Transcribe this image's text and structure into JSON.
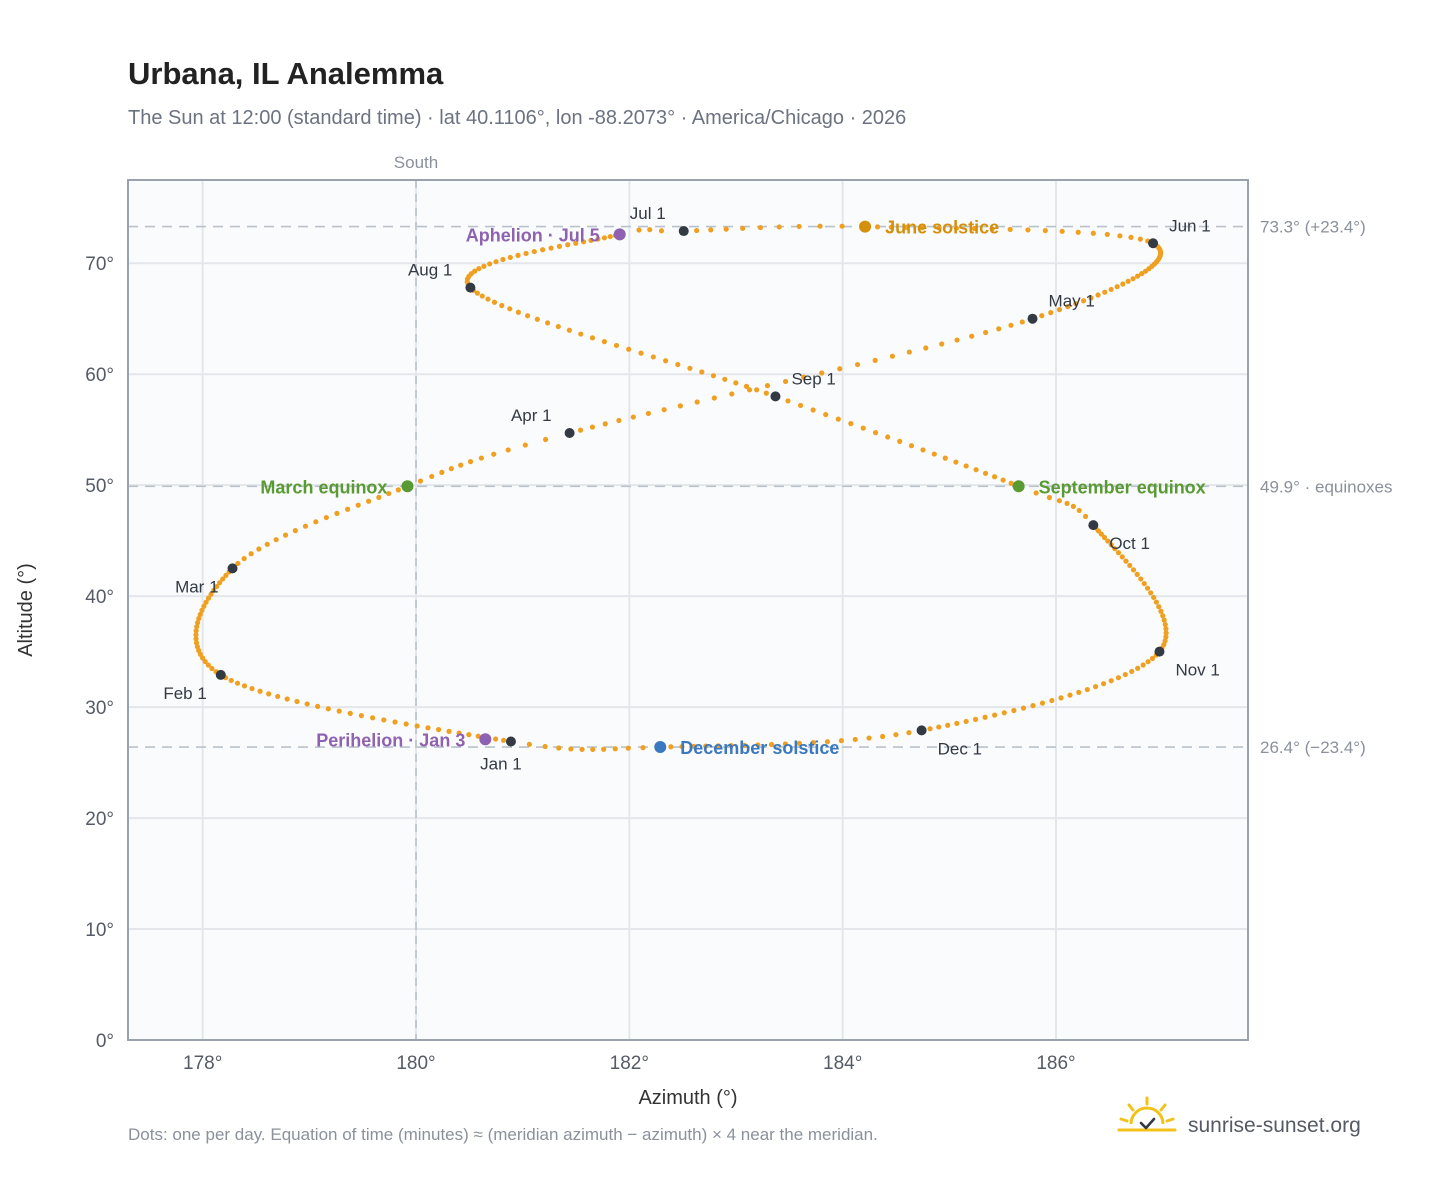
{
  "header": {
    "title": "Urbana, IL Analemma",
    "subtitle": "The Sun at 12:00 (standard time) · lat 40.1106°, lon -88.2073° · America/Chicago · 2026"
  },
  "footer": {
    "note": "Dots: one per day. Equation of time (minutes) ≈ (meridian azimuth − azimuth) × 4 near the meridian.",
    "brand": "sunrise-sunset.org"
  },
  "colors": {
    "path": "#f0a020",
    "month_marker": "#333a44",
    "equinox": "#5a9a32",
    "june_solstice": "#d4900a",
    "december_solstice": "#3a78c0",
    "apsis": "#8e62b0",
    "grid": "#e3e7ec",
    "reference_line": "#b8c2cc",
    "plot_background": "#fafbfd",
    "frame": "#9aa3ad"
  },
  "chart_data": {
    "type": "scatter",
    "xlabel": "Azimuth (°)",
    "ylabel": "Altitude (°)",
    "xlim": [
      177.3,
      187.8
    ],
    "ylim": [
      0,
      77.5
    ],
    "xticks": [
      178,
      180,
      182,
      184,
      186
    ],
    "xtick_labels": [
      "178°",
      "180°",
      "182°",
      "184°",
      "186°"
    ],
    "yticks": [
      0,
      10,
      20,
      30,
      40,
      50,
      60,
      70
    ],
    "ytick_labels": [
      "0°",
      "10°",
      "20°",
      "30°",
      "40°",
      "50°",
      "60°",
      "70°"
    ],
    "grid": true,
    "meridian": {
      "azimuth": 180,
      "label": "South"
    },
    "reference_lines": [
      {
        "altitude": 73.3,
        "label": "73.3° (+23.4°)"
      },
      {
        "altitude": 49.9,
        "label": "49.9° · equinoxes"
      },
      {
        "altitude": 26.4,
        "label": "26.4° (−23.4°)"
      }
    ],
    "path_anchors": [
      {
        "day": 0,
        "azimuth": 180.89,
        "altitude": 26.9
      },
      {
        "day": 31,
        "azimuth": 178.17,
        "altitude": 32.9
      },
      {
        "day": 59,
        "azimuth": 178.28,
        "altitude": 42.5
      },
      {
        "day": 78,
        "azimuth": 179.92,
        "altitude": 49.9
      },
      {
        "day": 90,
        "azimuth": 181.44,
        "altitude": 54.7
      },
      {
        "day": 120,
        "azimuth": 185.78,
        "altitude": 65.0
      },
      {
        "day": 151,
        "azimuth": 186.91,
        "altitude": 71.8
      },
      {
        "day": 171,
        "azimuth": 184.21,
        "altitude": 73.3
      },
      {
        "day": 181,
        "azimuth": 182.51,
        "altitude": 72.9
      },
      {
        "day": 185,
        "azimuth": 181.91,
        "altitude": 72.6
      },
      {
        "day": 212,
        "azimuth": 180.51,
        "altitude": 67.8
      },
      {
        "day": 243,
        "azimuth": 183.37,
        "altitude": 58.0
      },
      {
        "day": 265,
        "azimuth": 185.65,
        "altitude": 49.9
      },
      {
        "day": 273,
        "azimuth": 186.35,
        "altitude": 46.4
      },
      {
        "day": 304,
        "azimuth": 186.97,
        "altitude": 35.0
      },
      {
        "day": 334,
        "azimuth": 184.74,
        "altitude": 27.9
      },
      {
        "day": 354,
        "azimuth": 182.29,
        "altitude": 26.4
      },
      {
        "day": 365,
        "azimuth": 180.89,
        "altitude": 26.9
      }
    ],
    "month_markers": [
      {
        "label": "Jan 1",
        "azimuth": 180.89,
        "altitude": 26.9,
        "anchor": "below"
      },
      {
        "label": "Feb 1",
        "azimuth": 178.17,
        "altitude": 32.9,
        "anchor": "below-left"
      },
      {
        "label": "Mar 1",
        "azimuth": 178.28,
        "altitude": 42.5,
        "anchor": "below-left"
      },
      {
        "label": "Apr 1",
        "azimuth": 181.44,
        "altitude": 54.7,
        "anchor": "above-left"
      },
      {
        "label": "May 1",
        "azimuth": 185.78,
        "altitude": 65.0,
        "anchor": "above-right"
      },
      {
        "label": "Jun 1",
        "azimuth": 186.91,
        "altitude": 71.8,
        "anchor": "above-right"
      },
      {
        "label": "Jul 1",
        "azimuth": 182.51,
        "altitude": 72.9,
        "anchor": "above-left"
      },
      {
        "label": "Aug 1",
        "azimuth": 180.51,
        "altitude": 67.8,
        "anchor": "above-left"
      },
      {
        "label": "Sep 1",
        "azimuth": 183.37,
        "altitude": 58.0,
        "anchor": "above-right"
      },
      {
        "label": "Oct 1",
        "azimuth": 186.35,
        "altitude": 46.4,
        "anchor": "below-right"
      },
      {
        "label": "Nov 1",
        "azimuth": 186.97,
        "altitude": 35.0,
        "anchor": "below-right"
      },
      {
        "label": "Dec 1",
        "azimuth": 184.74,
        "altitude": 27.9,
        "anchor": "below-right"
      }
    ],
    "events": [
      {
        "label": "March equinox",
        "azimuth": 179.92,
        "altitude": 49.9,
        "color": "#5a9a32",
        "side": "left"
      },
      {
        "label": "June solstice",
        "azimuth": 184.21,
        "altitude": 73.3,
        "color": "#d4900a",
        "side": "right"
      },
      {
        "label": "September equinox",
        "azimuth": 185.65,
        "altitude": 49.9,
        "color": "#5a9a32",
        "side": "right"
      },
      {
        "label": "December solstice",
        "azimuth": 182.29,
        "altitude": 26.4,
        "color": "#3a78c0",
        "side": "right"
      },
      {
        "label": "Aphelion · Jul 5",
        "azimuth": 181.91,
        "altitude": 72.6,
        "color": "#8e62b0",
        "side": "left"
      },
      {
        "label": "Perihelion · Jan 3",
        "azimuth": 180.65,
        "altitude": 27.1,
        "color": "#8e62b0",
        "side": "left"
      }
    ]
  }
}
